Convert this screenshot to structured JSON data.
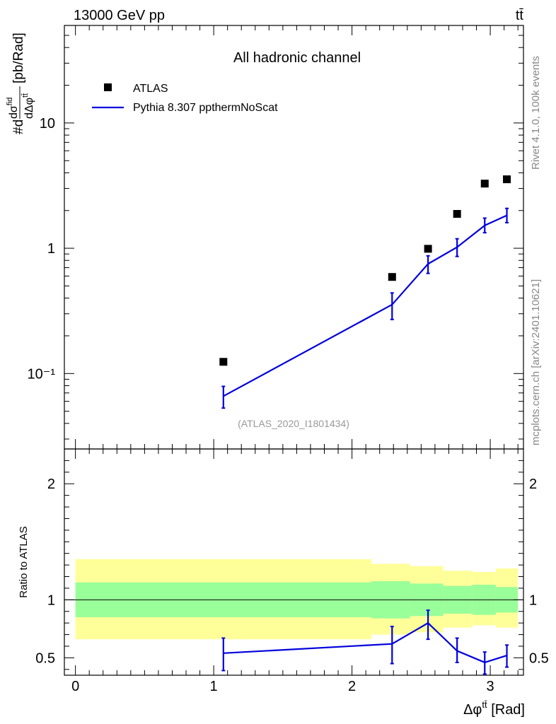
{
  "header": {
    "left": "13000 GeV pp",
    "right": "tt̄"
  },
  "side_labels": {
    "rivet": "Rivet 4.1.0,  100k events",
    "mcplots": "mcplots.cern.ch [arXiv:2401.10621]"
  },
  "colors": {
    "data": "#000000",
    "mc": "#0000dd",
    "band_outer": "#ffff99",
    "band_inner": "#99ff99",
    "watermark": "#999999",
    "side_text": "#888888"
  },
  "chart_data": [
    {
      "type": "line",
      "title": "All hadronic channel",
      "analysis_id": "(ATLAS_2020_I1801434)",
      "ylabel": "#d dσ^fid / dΔφ^tt̄ [pb/Rad]",
      "ylabel_parts": {
        "prefix": "#d",
        "num": "dσ",
        "num_sup": "fid",
        "den": "dΔφ",
        "den_sup": "tt̄",
        "unit": "[pb/Rad]"
      },
      "yscale": "log",
      "ylim": [
        0.025,
        60
      ],
      "xlim": [
        -0.08,
        3.24
      ],
      "y_tick_labels": [
        "10⁻¹",
        "1",
        "10"
      ],
      "y_tick_values": [
        0.1,
        1,
        10
      ],
      "legend": {
        "position": "top-left",
        "entries": [
          {
            "label": "ATLAS",
            "marker": "square"
          },
          {
            "label": "Pythia 8.307 ppthermNoScat",
            "marker": "line"
          }
        ]
      },
      "series": [
        {
          "name": "ATLAS",
          "style": "markers",
          "x": [
            1.07,
            2.29,
            2.55,
            2.76,
            2.96,
            3.12
          ],
          "y": [
            0.124,
            0.59,
            0.99,
            1.88,
            3.28,
            3.55
          ]
        },
        {
          "name": "Pythia 8.307 ppthermNoScat",
          "style": "line",
          "x": [
            1.07,
            2.29,
            2.55,
            2.76,
            2.96,
            3.12
          ],
          "y": [
            0.066,
            0.355,
            0.75,
            1.02,
            1.52,
            1.83
          ],
          "y_low": [
            0.053,
            0.27,
            0.63,
            0.86,
            1.33,
            1.6
          ],
          "y_high": [
            0.079,
            0.44,
            0.87,
            1.19,
            1.74,
            2.08
          ]
        }
      ]
    },
    {
      "type": "line",
      "title": "",
      "ylabel": "Ratio to ATLAS",
      "xlabel": "Δφ^tt̄ [Rad]",
      "xlabel_parts": {
        "main": "Δφ",
        "sup": "tt̄",
        "unit": "[Rad]"
      },
      "ylim": [
        0.35,
        2.3
      ],
      "xlim": [
        -0.08,
        3.24
      ],
      "x_tick_labels": [
        "0",
        "1",
        "2",
        "3"
      ],
      "x_tick_values": [
        0,
        1,
        2,
        3
      ],
      "y_tick_labels": [
        "0.5",
        "1",
        "2"
      ],
      "y_tick_values": [
        0.5,
        1,
        2
      ],
      "bands": [
        {
          "x_low": 0.0,
          "x_high": 2.14,
          "inner_low": 0.85,
          "inner_high": 1.15,
          "outer_low": 0.66,
          "outer_high": 1.35
        },
        {
          "x_low": 2.14,
          "x_high": 2.42,
          "inner_low": 0.84,
          "inner_high": 1.16,
          "outer_low": 0.7,
          "outer_high": 1.31
        },
        {
          "x_low": 2.42,
          "x_high": 2.66,
          "inner_low": 0.86,
          "inner_high": 1.14,
          "outer_low": 0.72,
          "outer_high": 1.29
        },
        {
          "x_low": 2.66,
          "x_high": 2.87,
          "inner_low": 0.88,
          "inner_high": 1.12,
          "outer_low": 0.76,
          "outer_high": 1.25
        },
        {
          "x_low": 2.87,
          "x_high": 3.04,
          "inner_low": 0.87,
          "inner_high": 1.13,
          "outer_low": 0.78,
          "outer_high": 1.24
        },
        {
          "x_low": 3.04,
          "x_high": 3.2,
          "inner_low": 0.89,
          "inner_high": 1.11,
          "outer_low": 0.76,
          "outer_high": 1.27
        }
      ],
      "series": [
        {
          "name": "Pythia 8.307 ppthermNoScat / ATLAS",
          "style": "line",
          "x": [
            1.07,
            2.29,
            2.55,
            2.76,
            2.96,
            3.12
          ],
          "y": [
            0.54,
            0.62,
            0.8,
            0.56,
            0.46,
            0.52
          ],
          "y_low": [
            0.39,
            0.45,
            0.66,
            0.46,
            0.36,
            0.42
          ],
          "y_high": [
            0.67,
            0.77,
            0.91,
            0.67,
            0.55,
            0.61
          ]
        }
      ]
    }
  ]
}
